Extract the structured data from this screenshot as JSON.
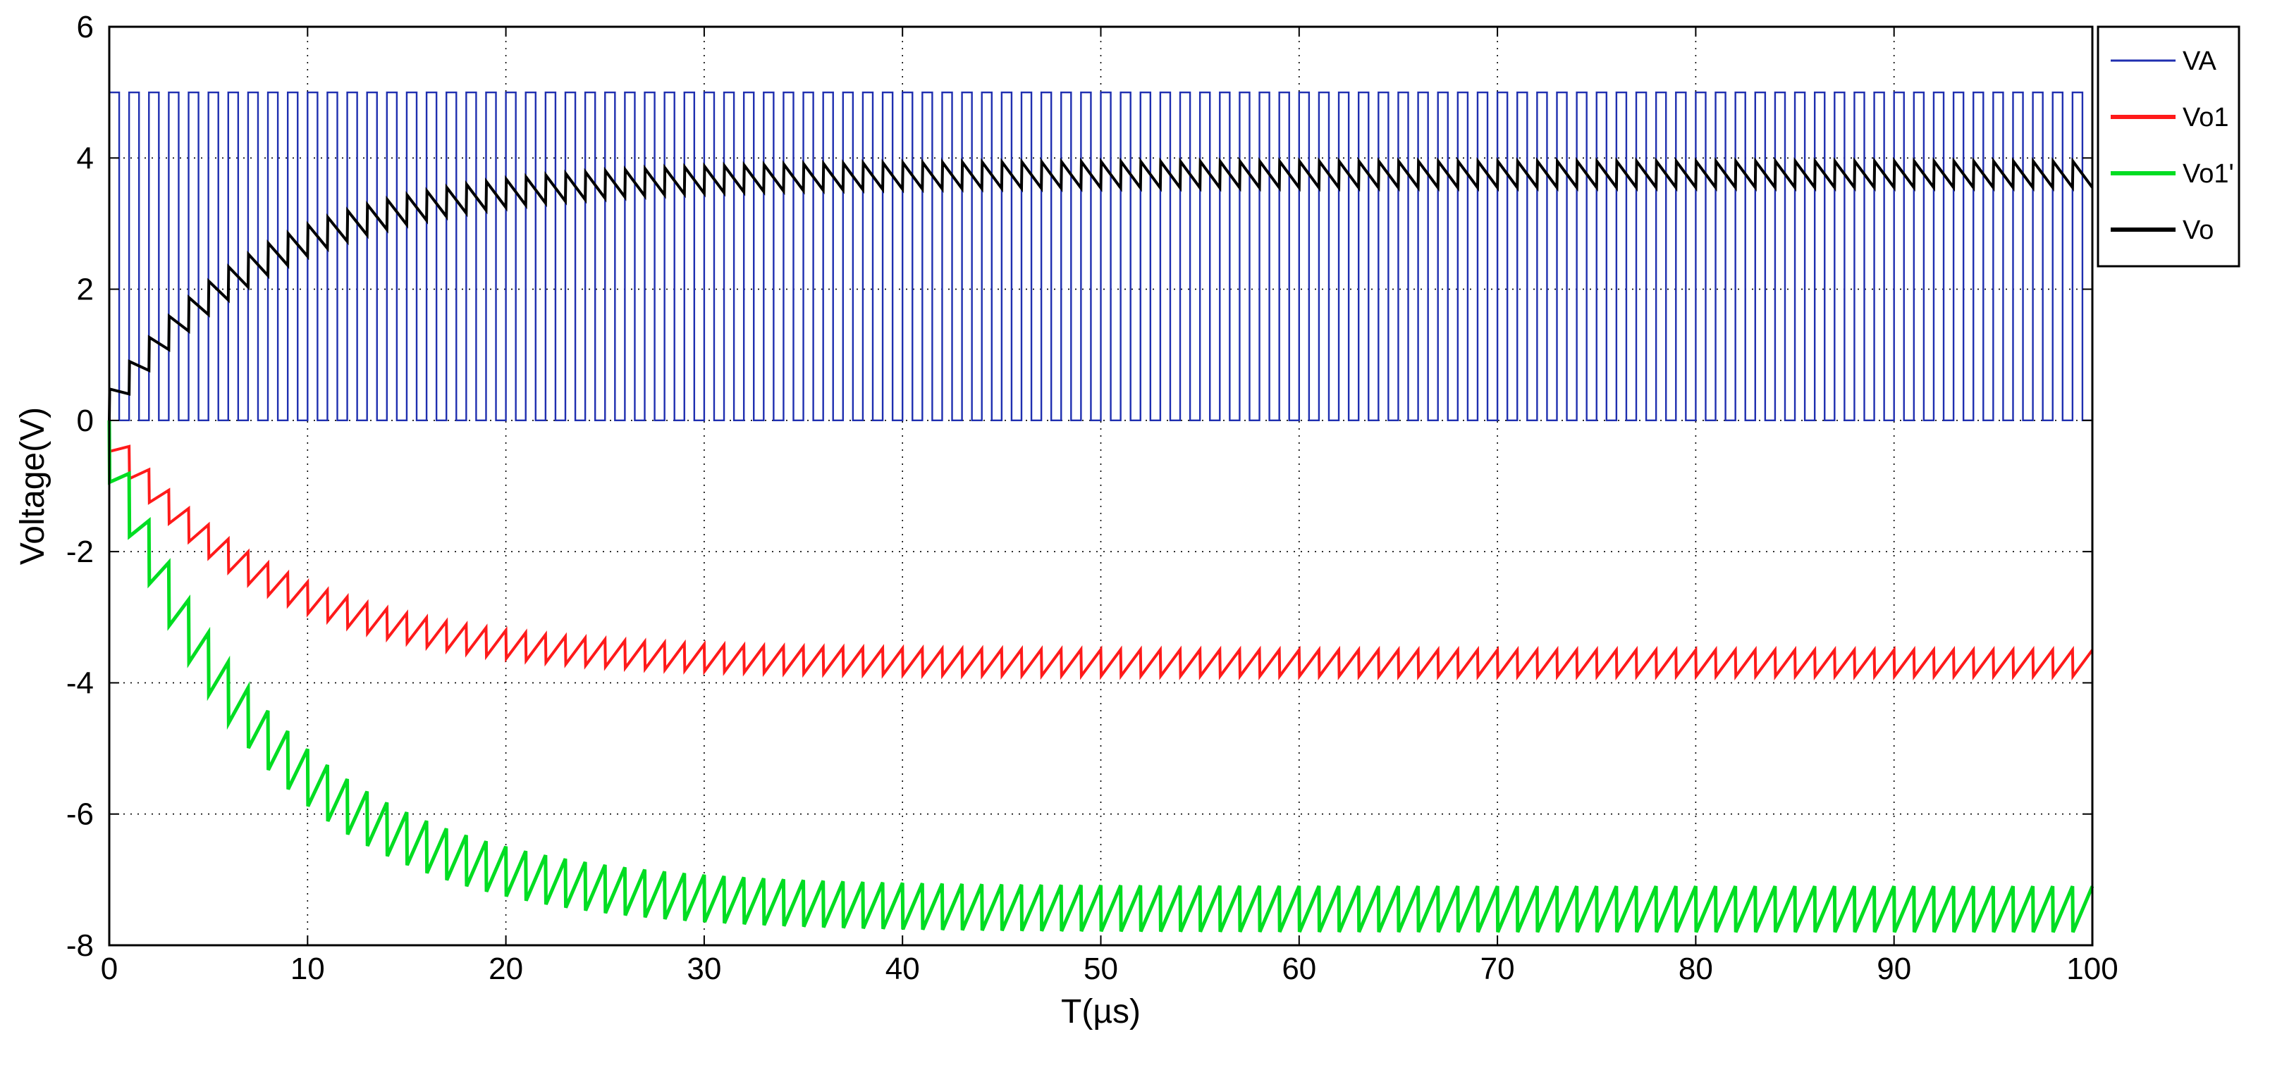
{
  "chart_data": {
    "type": "line",
    "title": "",
    "xlabel": "T(µs)",
    "ylabel": "Voltage(V)",
    "xlim": [
      0,
      100
    ],
    "ylim": [
      -8,
      6
    ],
    "x_ticks": [
      0,
      10,
      20,
      30,
      40,
      50,
      60,
      70,
      80,
      90,
      100
    ],
    "y_ticks": [
      -8,
      -6,
      -4,
      -2,
      0,
      2,
      4,
      6
    ],
    "grid": true,
    "legend_position": "top-right",
    "series": [
      {
        "name": "VA",
        "color": "#1f2fb0",
        "kind": "square_wave",
        "low": 0,
        "high": 5,
        "period_us": 1
      },
      {
        "name": "Vo1",
        "color": "#ff1a1a",
        "kind": "sawtooth_decay",
        "start": 0,
        "steady_mean": -3.7,
        "ripple_pp": 0.4,
        "tau_us": 8,
        "period_us": 1
      },
      {
        "name": "Vo1'",
        "color": "#00dd22",
        "kind": "sawtooth_decay",
        "start": 0,
        "steady_mean": -7.45,
        "ripple_pp": 0.7,
        "tau_us": 8,
        "period_us": 1
      },
      {
        "name": "Vo",
        "color": "#000000",
        "kind": "sawtooth_rise",
        "start": 0,
        "steady_mean": 3.75,
        "ripple_pp": 0.4,
        "tau_us": 8,
        "period_us": 1
      }
    ]
  }
}
